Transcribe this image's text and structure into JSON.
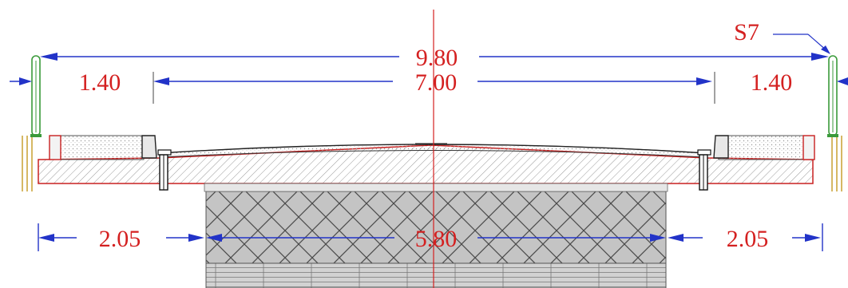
{
  "dimensions": {
    "top_total": "9.80",
    "left_sidewalk": "1.40",
    "carriageway": "7.00",
    "right_sidewalk": "1.40",
    "bottom_left": "2.05",
    "bottom_middle": "5.80",
    "bottom_right": "2.05"
  },
  "labels": {
    "railing_tag": "S7"
  },
  "colors": {
    "dimension_line": "#2233c8",
    "dimension_text": "#d42020",
    "section_outline": "#c82020",
    "centerline": "#d42020",
    "pier_fill": "#bdbdbd",
    "railing": "#3a9a3a",
    "abutment": "#c8a030"
  }
}
